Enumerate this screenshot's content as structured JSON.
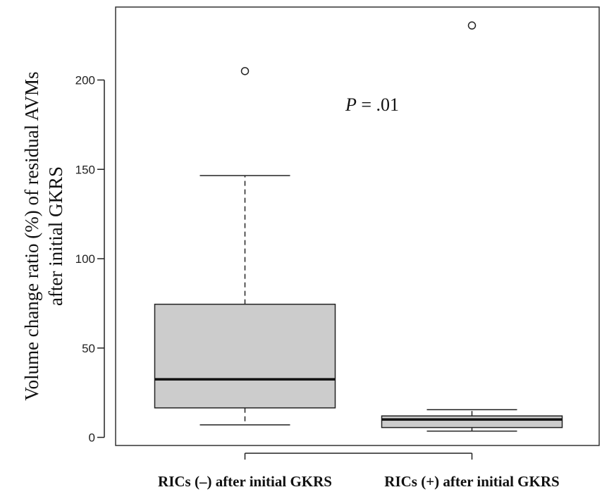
{
  "chart_data": {
    "type": "box",
    "title": "",
    "ylabel_line1": "Volume change ratio (%) of residual AVMs",
    "ylabel_line2": "after initial GKRS",
    "ylim": [
      -4,
      237
    ],
    "yticks": [
      0,
      50,
      100,
      150,
      200
    ],
    "categories": [
      "RICs (–) after initial GKRS",
      "RICs (+) after initial GKRS"
    ],
    "boxes": [
      {
        "category": "RICs (–) after initial GKRS",
        "whisker_low": 7,
        "q1": 16.5,
        "median": 32.5,
        "q3": 74.5,
        "whisker_high": 146.5,
        "outliers": [
          205
        ]
      },
      {
        "category": "RICs (+) after initial GKRS",
        "whisker_low": 3.5,
        "q1": 5.5,
        "median": 10,
        "q3": 12,
        "whisker_high": 15.5,
        "outliers": [
          230.5
        ]
      }
    ],
    "annotation": {
      "italic": "P",
      "rest": " = .01"
    },
    "colors": {
      "box_fill": "#cccccc",
      "stroke": "#222222"
    }
  }
}
